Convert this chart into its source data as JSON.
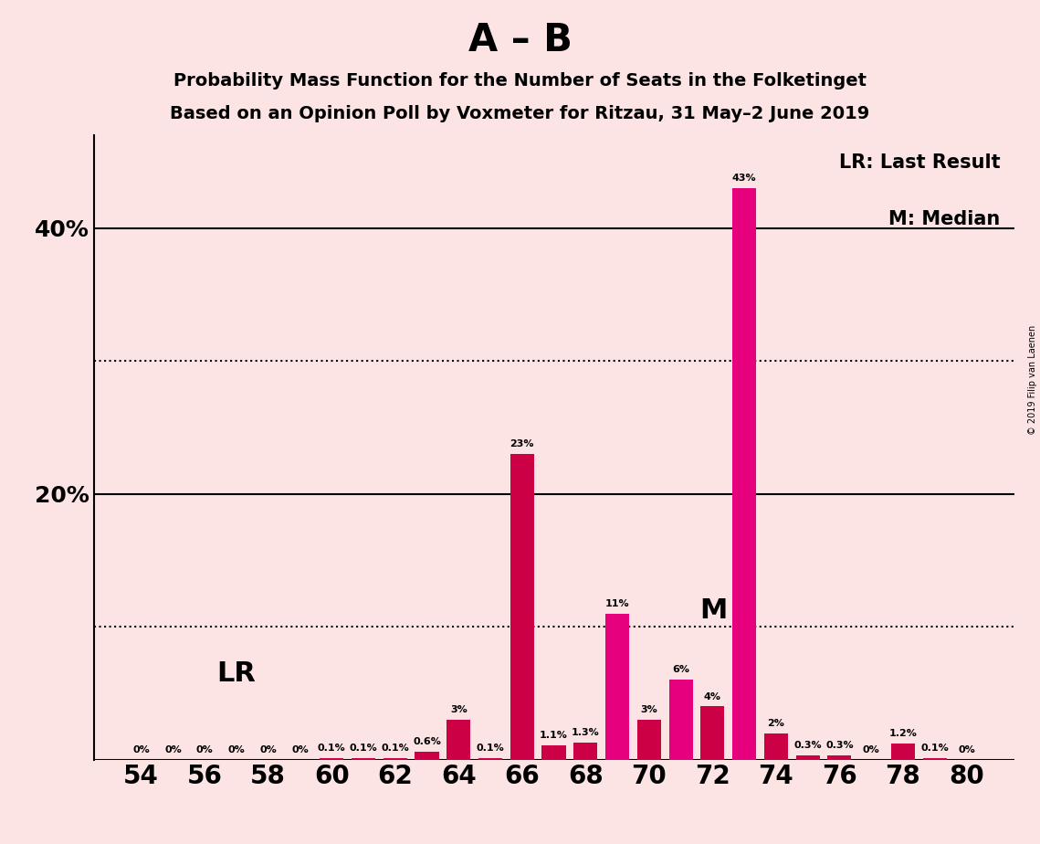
{
  "title1": "A – B",
  "title2": "Probability Mass Function for the Number of Seats in the Folketinget",
  "title3": "Based on an Opinion Poll by Voxmeter for Ritzau, 31 May–2 June 2019",
  "copyright": "© 2019 Filip van Laenen",
  "seats": [
    54,
    55,
    56,
    57,
    58,
    59,
    60,
    61,
    62,
    63,
    64,
    65,
    66,
    67,
    68,
    69,
    70,
    71,
    72,
    73,
    74,
    75,
    76,
    77,
    78,
    79,
    80
  ],
  "probabilities": [
    0.0,
    0.0,
    0.0,
    0.0,
    0.0,
    0.0,
    0.1,
    0.1,
    0.1,
    0.6,
    3.0,
    0.1,
    23.0,
    1.1,
    1.3,
    11.0,
    3.0,
    6.0,
    4.0,
    43.0,
    2.0,
    0.3,
    0.3,
    0.0,
    1.2,
    0.1,
    0.0
  ],
  "bar_colors": [
    "#cc0044",
    "#cc0044",
    "#cc0044",
    "#cc0044",
    "#cc0044",
    "#cc0044",
    "#cc0044",
    "#cc0044",
    "#cc0044",
    "#cc0044",
    "#cc0044",
    "#cc0044",
    "#cc0044",
    "#cc0044",
    "#cc0044",
    "#e6007e",
    "#cc0044",
    "#e6007e",
    "#cc0044",
    "#e6007e",
    "#cc0044",
    "#cc0044",
    "#cc0044",
    "#cc0044",
    "#cc0044",
    "#cc0044",
    "#cc0044"
  ],
  "background_color": "#fce4e4",
  "lr_seat": 63,
  "median_seat": 71,
  "ylim": [
    0,
    47
  ],
  "solid_lines": [
    20,
    40
  ],
  "dotted_lines": [
    10,
    30
  ],
  "legend_text1": "LR: Last Result",
  "legend_text2": "M: Median",
  "lr_label": "LR",
  "median_label": "M"
}
